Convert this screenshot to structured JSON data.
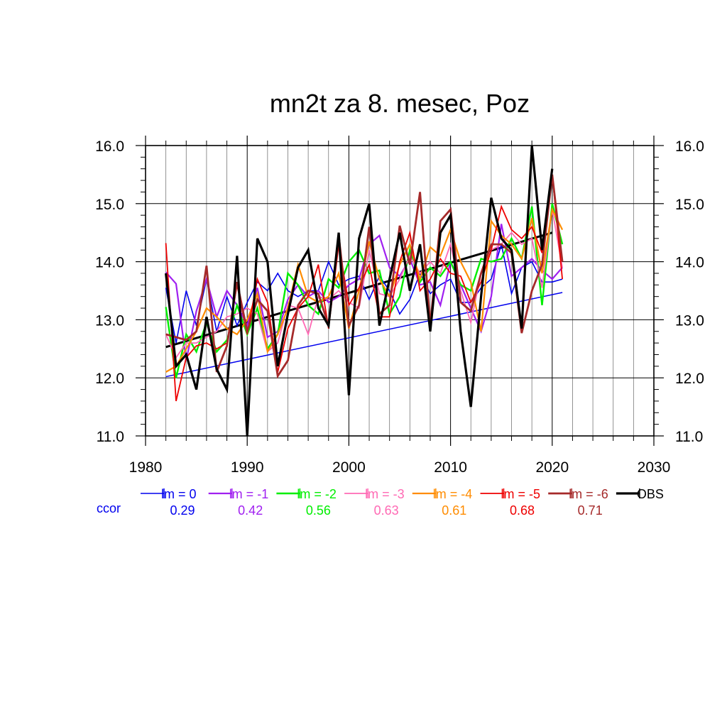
{
  "chart_data": {
    "type": "line",
    "title": "mn2t za 8. mesec, Poz",
    "xlabel": "",
    "ylabel": "",
    "xlim": [
      1980,
      2030
    ],
    "ylim": [
      11.0,
      16.0
    ],
    "x_ticks": [
      "1980",
      "1990",
      "2000",
      "2010",
      "2020",
      "2030"
    ],
    "y_ticks": [
      "11.0",
      "12.0",
      "13.0",
      "14.0",
      "15.0",
      "16.0"
    ],
    "grid": true,
    "legend_position": "bottom",
    "years": [
      1982,
      1983,
      1984,
      1985,
      1986,
      1987,
      1988,
      1989,
      1990,
      1991,
      1992,
      1993,
      1994,
      1995,
      1996,
      1997,
      1998,
      1999,
      2000,
      2001,
      2002,
      2003,
      2004,
      2005,
      2006,
      2007,
      2008,
      2009,
      2010,
      2011,
      2012,
      2013,
      2014,
      2015,
      2016,
      2017,
      2018,
      2019,
      2020,
      2021
    ],
    "ccor_label": "ccor",
    "series": [
      {
        "name": "lm = 0",
        "color": "#0000ee",
        "width": 1.6,
        "ccor": "0.29",
        "trend": [
          12.02,
          13.47
        ],
        "values": [
          13.55,
          12.6,
          13.5,
          12.9,
          13.7,
          12.8,
          13.4,
          12.9,
          13.3,
          13.65,
          13.5,
          13.8,
          13.5,
          13.4,
          13.5,
          13.5,
          14.0,
          13.6,
          13.7,
          13.75,
          13.35,
          13.75,
          13.5,
          13.1,
          13.35,
          13.8,
          13.45,
          13.6,
          13.7,
          13.3,
          13.3,
          13.55,
          13.7,
          14.3,
          13.45,
          13.9,
          14.0,
          13.65,
          13.65,
          13.7
        ]
      },
      {
        "name": "lm = -1",
        "color": "#a020f0",
        "width": 2.2,
        "ccor": "0.42",
        "values": [
          13.82,
          13.62,
          12.3,
          13.15,
          13.7,
          13.05,
          13.5,
          13.25,
          12.9,
          13.55,
          12.7,
          12.8,
          13.35,
          13.6,
          13.4,
          13.5,
          13.3,
          13.4,
          13.6,
          13.7,
          14.3,
          14.45,
          13.9,
          13.75,
          14.05,
          13.6,
          13.65,
          13.25,
          14.0,
          13.6,
          13.2,
          12.8,
          13.4,
          14.65,
          13.75,
          13.9,
          14.05,
          13.85,
          13.7,
          13.9
        ]
      },
      {
        "name": "lm = -2",
        "color": "#00ee00",
        "width": 2.4,
        "ccor": "0.56",
        "values": [
          13.22,
          12.0,
          12.75,
          12.45,
          12.95,
          12.45,
          12.65,
          13.25,
          12.75,
          13.2,
          12.5,
          12.75,
          13.8,
          13.6,
          13.25,
          13.1,
          13.7,
          13.55,
          14.0,
          14.2,
          13.8,
          13.85,
          13.1,
          13.4,
          14.2,
          13.65,
          13.9,
          13.75,
          14.0,
          13.6,
          13.5,
          14.05,
          14.0,
          14.05,
          14.4,
          14.05,
          14.95,
          13.25,
          15.0,
          14.3
        ]
      },
      {
        "name": "lm = -3",
        "color": "#ff69b4",
        "width": 1.8,
        "ccor": "0.63",
        "values": [
          12.75,
          12.35,
          12.6,
          12.6,
          12.7,
          12.8,
          13.05,
          13.1,
          13.2,
          13.1,
          12.45,
          12.6,
          13.25,
          13.2,
          12.75,
          13.4,
          13.35,
          13.5,
          13.3,
          13.2,
          14.2,
          13.45,
          13.4,
          13.7,
          14.1,
          13.8,
          14.0,
          13.8,
          14.3,
          13.5,
          12.95,
          13.8,
          14.2,
          14.3,
          14.5,
          14.3,
          14.4,
          13.55,
          14.9,
          13.9
        ]
      },
      {
        "name": "lm = -4",
        "color": "#ff8c00",
        "width": 2.2,
        "ccor": "0.61",
        "values": [
          12.1,
          12.2,
          12.5,
          12.8,
          13.2,
          13.05,
          12.85,
          12.75,
          13.0,
          13.45,
          12.45,
          12.75,
          13.2,
          13.95,
          13.4,
          13.3,
          13.4,
          13.8,
          12.85,
          13.5,
          14.35,
          13.7,
          13.4,
          13.95,
          14.3,
          13.7,
          14.25,
          14.1,
          14.55,
          14.0,
          13.65,
          12.8,
          14.7,
          14.45,
          14.3,
          14.05,
          14.75,
          13.8,
          14.9,
          14.55
        ]
      },
      {
        "name": "lm = -5",
        "color": "#ee0000",
        "width": 1.8,
        "ccor": "0.68",
        "values": [
          14.32,
          11.6,
          12.35,
          12.55,
          12.6,
          12.5,
          12.6,
          13.6,
          12.75,
          13.7,
          13.3,
          12.1,
          12.85,
          13.2,
          13.4,
          13.95,
          12.85,
          14.3,
          13.25,
          13.55,
          13.95,
          13.05,
          13.05,
          14.0,
          14.5,
          13.5,
          13.7,
          14.05,
          13.8,
          13.75,
          13.3,
          13.65,
          14.2,
          14.95,
          14.55,
          14.4,
          14.6,
          14.15,
          15.5,
          13.7
        ]
      },
      {
        "name": "lm = -6",
        "color": "#a52a2a",
        "width": 2.8,
        "ccor": "0.71",
        "values": [
          12.75,
          12.7,
          12.65,
          12.8,
          13.93,
          12.1,
          12.55,
          13.65,
          12.8,
          13.35,
          13.15,
          12.03,
          12.3,
          13.25,
          13.5,
          13.45,
          12.9,
          14.45,
          12.9,
          13.25,
          14.6,
          13.1,
          13.25,
          14.62,
          13.95,
          15.2,
          12.9,
          14.7,
          14.9,
          13.3,
          13.15,
          13.8,
          14.3,
          14.3,
          14.15,
          12.77,
          13.5,
          13.95,
          15.5,
          14.0
        ]
      },
      {
        "name": "OBS",
        "color": "#000000",
        "width": 3.2,
        "trend": [
          12.53,
          14.5
        ],
        "values": [
          13.8,
          12.2,
          12.4,
          11.8,
          13.05,
          12.15,
          11.8,
          14.1,
          11.0,
          14.4,
          14.0,
          12.2,
          13.1,
          13.9,
          14.2,
          13.2,
          12.9,
          14.5,
          11.7,
          14.4,
          15.0,
          12.9,
          13.7,
          14.5,
          13.5,
          14.3,
          12.8,
          14.5,
          14.8,
          12.8,
          11.5,
          13.4,
          15.1,
          14.4,
          14.2,
          12.85,
          16.0,
          14.2,
          15.6,
          null
        ]
      }
    ]
  }
}
